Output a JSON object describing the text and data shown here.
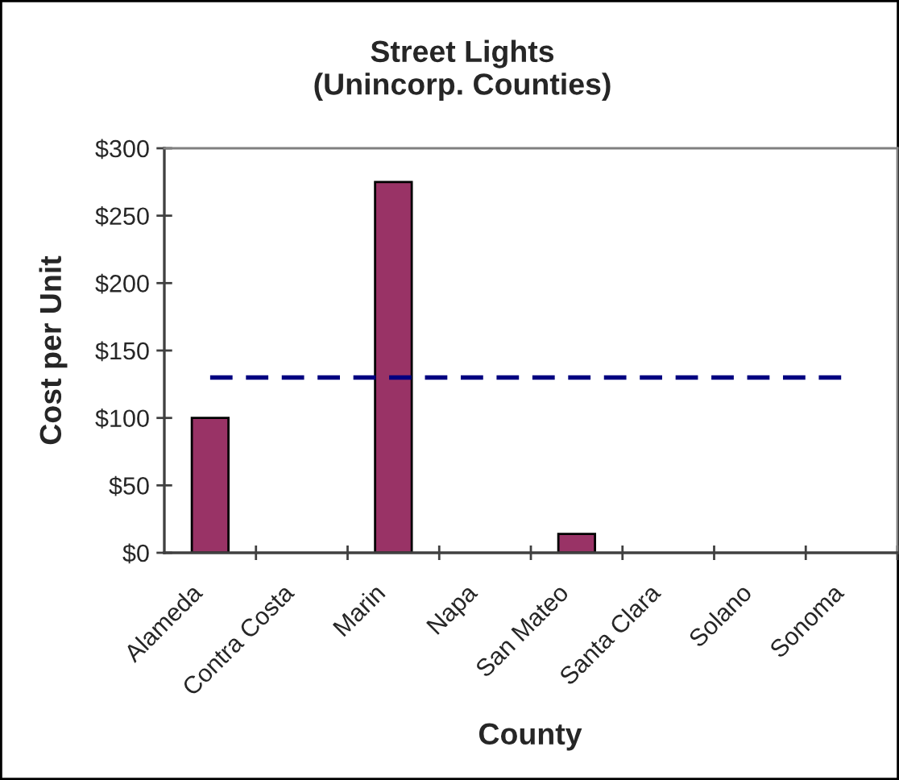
{
  "chart_data": {
    "type": "bar",
    "title": "Street Lights\n(Unincorp. Counties)",
    "xlabel": "County",
    "ylabel": "Cost per Unit",
    "categories": [
      "Alameda",
      "Contra Costa",
      "Marin",
      "Napa",
      "San Mateo",
      "Santa Clara",
      "Solano",
      "Sonoma"
    ],
    "values": [
      100,
      null,
      275,
      null,
      14,
      null,
      null,
      null
    ],
    "color": "#993366",
    "ylim": [
      0,
      300
    ],
    "yticks": [
      {
        "value": 0,
        "label": "$0"
      },
      {
        "value": 50,
        "label": "$50"
      },
      {
        "value": 100,
        "label": "$100"
      },
      {
        "value": 150,
        "label": "$150"
      },
      {
        "value": 200,
        "label": "$200"
      },
      {
        "value": 250,
        "label": "$250"
      },
      {
        "value": 300,
        "label": "$300"
      }
    ],
    "ref_lines": [
      {
        "axis": "y",
        "value": 130,
        "color": "#000080",
        "line_style": "dashed"
      }
    ],
    "grid": false,
    "legend": false
  }
}
